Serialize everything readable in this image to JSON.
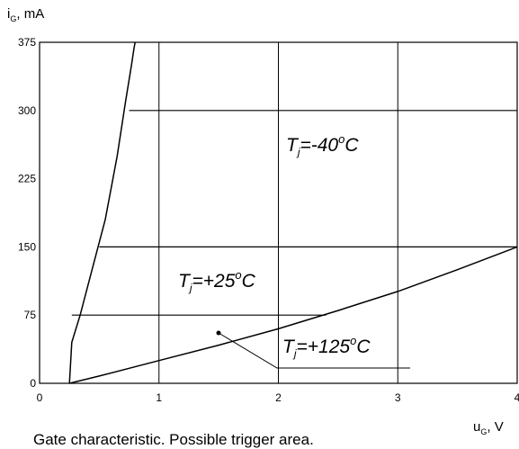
{
  "chart_data": {
    "type": "line",
    "y_axis_label": {
      "main": "i",
      "sub": "G",
      "rest": ", mA"
    },
    "x_axis_label": {
      "main": "u",
      "sub": "G",
      "rest": ", V"
    },
    "xlim": [
      0,
      4
    ],
    "ylim": [
      0,
      375
    ],
    "x_ticks": [
      0,
      1,
      2,
      3,
      4
    ],
    "y_ticks": [
      0,
      75,
      150,
      225,
      300,
      375
    ],
    "grid": true,
    "caption": "Gate characteristic. Possible trigger area.",
    "curves": [
      {
        "x": [
          0.25,
          0.27,
          0.34,
          0.45,
          0.55,
          0.65,
          0.72,
          0.77,
          0.79,
          0.8
        ],
        "y": [
          0,
          45,
          75,
          130,
          180,
          250,
          310,
          350,
          368,
          375
        ]
      },
      {
        "x": [
          0.25,
          0.5,
          1.0,
          1.5,
          2.0,
          2.5,
          3.0,
          3.5,
          4.0
        ],
        "y": [
          0,
          8,
          25,
          42,
          60,
          80,
          101,
          125,
          150
        ]
      }
    ],
    "trigger_boundaries": [
      {
        "x": [
          0.27,
          2.4
        ],
        "y": [
          75,
          75
        ]
      },
      {
        "x": [
          0.5,
          4.0
        ],
        "y": [
          150,
          150
        ]
      },
      {
        "x": [
          0.75,
          4.0
        ],
        "y": [
          300,
          300
        ]
      }
    ],
    "annotations": [
      {
        "main": "T",
        "sub": "j",
        "value": "=-40",
        "sup": "o",
        "unit": "C"
      },
      {
        "main": "T",
        "sub": "j",
        "value": "=+25",
        "sup": "o",
        "unit": "C"
      },
      {
        "main": "T",
        "sub": "j",
        "value": "=+125",
        "sup": "o",
        "unit": "C"
      }
    ]
  }
}
